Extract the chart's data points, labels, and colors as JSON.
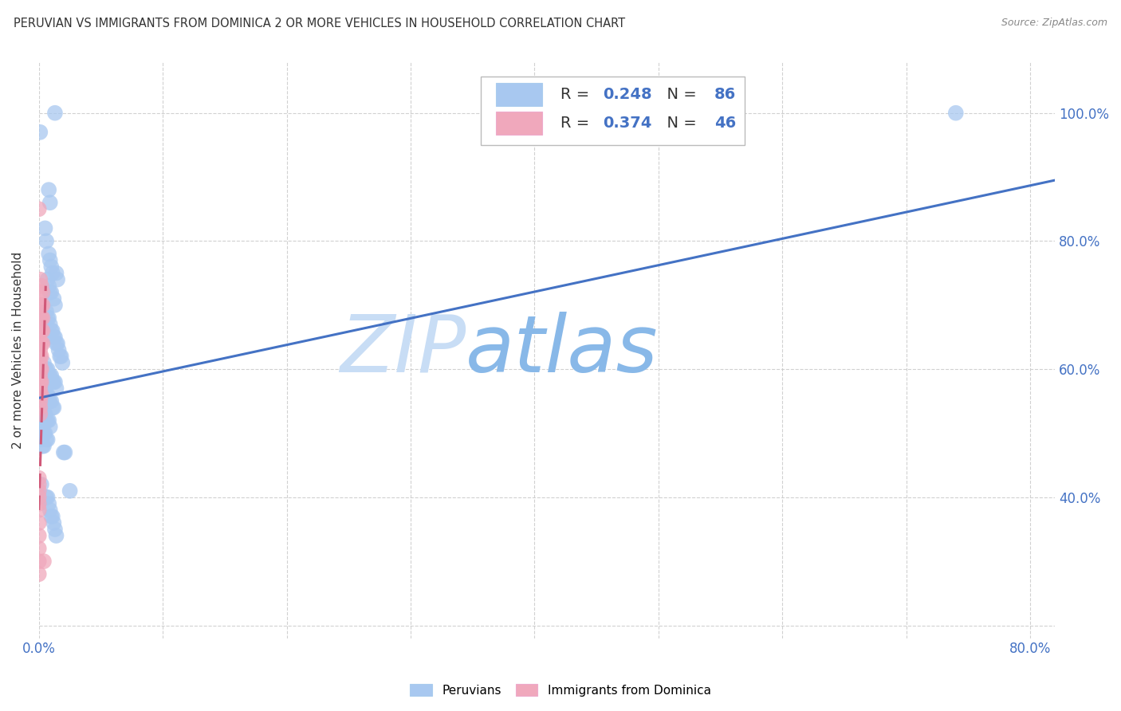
{
  "title": "PERUVIAN VS IMMIGRANTS FROM DOMINICA 2 OR MORE VEHICLES IN HOUSEHOLD CORRELATION CHART",
  "source": "Source: ZipAtlas.com",
  "ylabel": "2 or more Vehicles in Household",
  "legend_blue_R": "0.248",
  "legend_blue_N": "86",
  "legend_pink_R": "0.374",
  "legend_pink_N": "46",
  "blue_color": "#a8c8f0",
  "pink_color": "#f0a8bc",
  "blue_line_color": "#4472c4",
  "pink_line_color": "#d05878",
  "blue_scatter": [
    [
      0.001,
      0.97
    ],
    [
      0.013,
      1.0
    ],
    [
      0.008,
      0.88
    ],
    [
      0.009,
      0.86
    ],
    [
      0.005,
      0.82
    ],
    [
      0.006,
      0.8
    ],
    [
      0.008,
      0.78
    ],
    [
      0.009,
      0.77
    ],
    [
      0.01,
      0.76
    ],
    [
      0.011,
      0.75
    ],
    [
      0.007,
      0.74
    ],
    [
      0.008,
      0.73
    ],
    [
      0.009,
      0.72
    ],
    [
      0.01,
      0.72
    ],
    [
      0.012,
      0.71
    ],
    [
      0.013,
      0.7
    ],
    [
      0.014,
      0.75
    ],
    [
      0.015,
      0.74
    ],
    [
      0.006,
      0.69
    ],
    [
      0.007,
      0.68
    ],
    [
      0.008,
      0.68
    ],
    [
      0.009,
      0.67
    ],
    [
      0.01,
      0.66
    ],
    [
      0.011,
      0.66
    ],
    [
      0.012,
      0.65
    ],
    [
      0.013,
      0.65
    ],
    [
      0.014,
      0.64
    ],
    [
      0.015,
      0.64
    ],
    [
      0.016,
      0.63
    ],
    [
      0.017,
      0.62
    ],
    [
      0.018,
      0.62
    ],
    [
      0.019,
      0.61
    ],
    [
      0.004,
      0.61
    ],
    [
      0.005,
      0.6
    ],
    [
      0.006,
      0.6
    ],
    [
      0.007,
      0.6
    ],
    [
      0.008,
      0.59
    ],
    [
      0.009,
      0.59
    ],
    [
      0.01,
      0.59
    ],
    [
      0.011,
      0.58
    ],
    [
      0.012,
      0.58
    ],
    [
      0.013,
      0.58
    ],
    [
      0.014,
      0.57
    ],
    [
      0.003,
      0.57
    ],
    [
      0.004,
      0.57
    ],
    [
      0.005,
      0.56
    ],
    [
      0.006,
      0.56
    ],
    [
      0.007,
      0.56
    ],
    [
      0.008,
      0.55
    ],
    [
      0.009,
      0.55
    ],
    [
      0.01,
      0.55
    ],
    [
      0.011,
      0.54
    ],
    [
      0.012,
      0.54
    ],
    [
      0.003,
      0.54
    ],
    [
      0.004,
      0.53
    ],
    [
      0.005,
      0.53
    ],
    [
      0.006,
      0.52
    ],
    [
      0.007,
      0.52
    ],
    [
      0.008,
      0.52
    ],
    [
      0.009,
      0.51
    ],
    [
      0.002,
      0.51
    ],
    [
      0.003,
      0.51
    ],
    [
      0.004,
      0.5
    ],
    [
      0.005,
      0.5
    ],
    [
      0.006,
      0.49
    ],
    [
      0.007,
      0.49
    ],
    [
      0.002,
      0.49
    ],
    [
      0.003,
      0.48
    ],
    [
      0.004,
      0.48
    ],
    [
      0.02,
      0.47
    ],
    [
      0.021,
      0.47
    ],
    [
      0.002,
      0.42
    ],
    [
      0.025,
      0.41
    ],
    [
      0.006,
      0.4
    ],
    [
      0.007,
      0.4
    ],
    [
      0.008,
      0.39
    ],
    [
      0.009,
      0.38
    ],
    [
      0.01,
      0.37
    ],
    [
      0.011,
      0.37
    ],
    [
      0.012,
      0.36
    ],
    [
      0.013,
      0.35
    ],
    [
      0.014,
      0.34
    ],
    [
      0.74,
      1.0
    ]
  ],
  "pink_scatter": [
    [
      0.0,
      0.85
    ],
    [
      0.001,
      0.74
    ],
    [
      0.001,
      0.72
    ],
    [
      0.001,
      0.7
    ],
    [
      0.001,
      0.68
    ],
    [
      0.001,
      0.66
    ],
    [
      0.001,
      0.64
    ],
    [
      0.001,
      0.63
    ],
    [
      0.001,
      0.62
    ],
    [
      0.001,
      0.61
    ],
    [
      0.001,
      0.6
    ],
    [
      0.001,
      0.59
    ],
    [
      0.001,
      0.58
    ],
    [
      0.001,
      0.57
    ],
    [
      0.001,
      0.56
    ],
    [
      0.001,
      0.55
    ],
    [
      0.001,
      0.54
    ],
    [
      0.001,
      0.53
    ],
    [
      0.002,
      0.73
    ],
    [
      0.002,
      0.7
    ],
    [
      0.002,
      0.68
    ],
    [
      0.002,
      0.66
    ],
    [
      0.002,
      0.64
    ],
    [
      0.002,
      0.62
    ],
    [
      0.002,
      0.6
    ],
    [
      0.002,
      0.58
    ],
    [
      0.002,
      0.56
    ],
    [
      0.003,
      0.72
    ],
    [
      0.003,
      0.7
    ],
    [
      0.003,
      0.68
    ],
    [
      0.003,
      0.66
    ],
    [
      0.003,
      0.64
    ],
    [
      0.0,
      0.43
    ],
    [
      0.0,
      0.42
    ],
    [
      0.0,
      0.41
    ],
    [
      0.0,
      0.4
    ],
    [
      0.0,
      0.39
    ],
    [
      0.0,
      0.38
    ],
    [
      0.0,
      0.36
    ],
    [
      0.0,
      0.34
    ],
    [
      0.0,
      0.32
    ],
    [
      0.0,
      0.3
    ],
    [
      0.0,
      0.28
    ],
    [
      0.004,
      0.3
    ]
  ],
  "xlim": [
    0.0,
    0.82
  ],
  "ylim": [
    0.18,
    1.08
  ],
  "xticks": [
    0.0,
    0.1,
    0.2,
    0.3,
    0.4,
    0.5,
    0.6,
    0.7,
    0.8
  ],
  "yticks": [
    0.2,
    0.4,
    0.6,
    0.8,
    1.0
  ],
  "blue_trend_x": [
    0.0,
    0.82
  ],
  "blue_trend_y": [
    0.555,
    0.895
  ],
  "pink_trend_x": [
    0.0,
    0.0055
  ],
  "pink_trend_y": [
    0.38,
    0.73
  ]
}
